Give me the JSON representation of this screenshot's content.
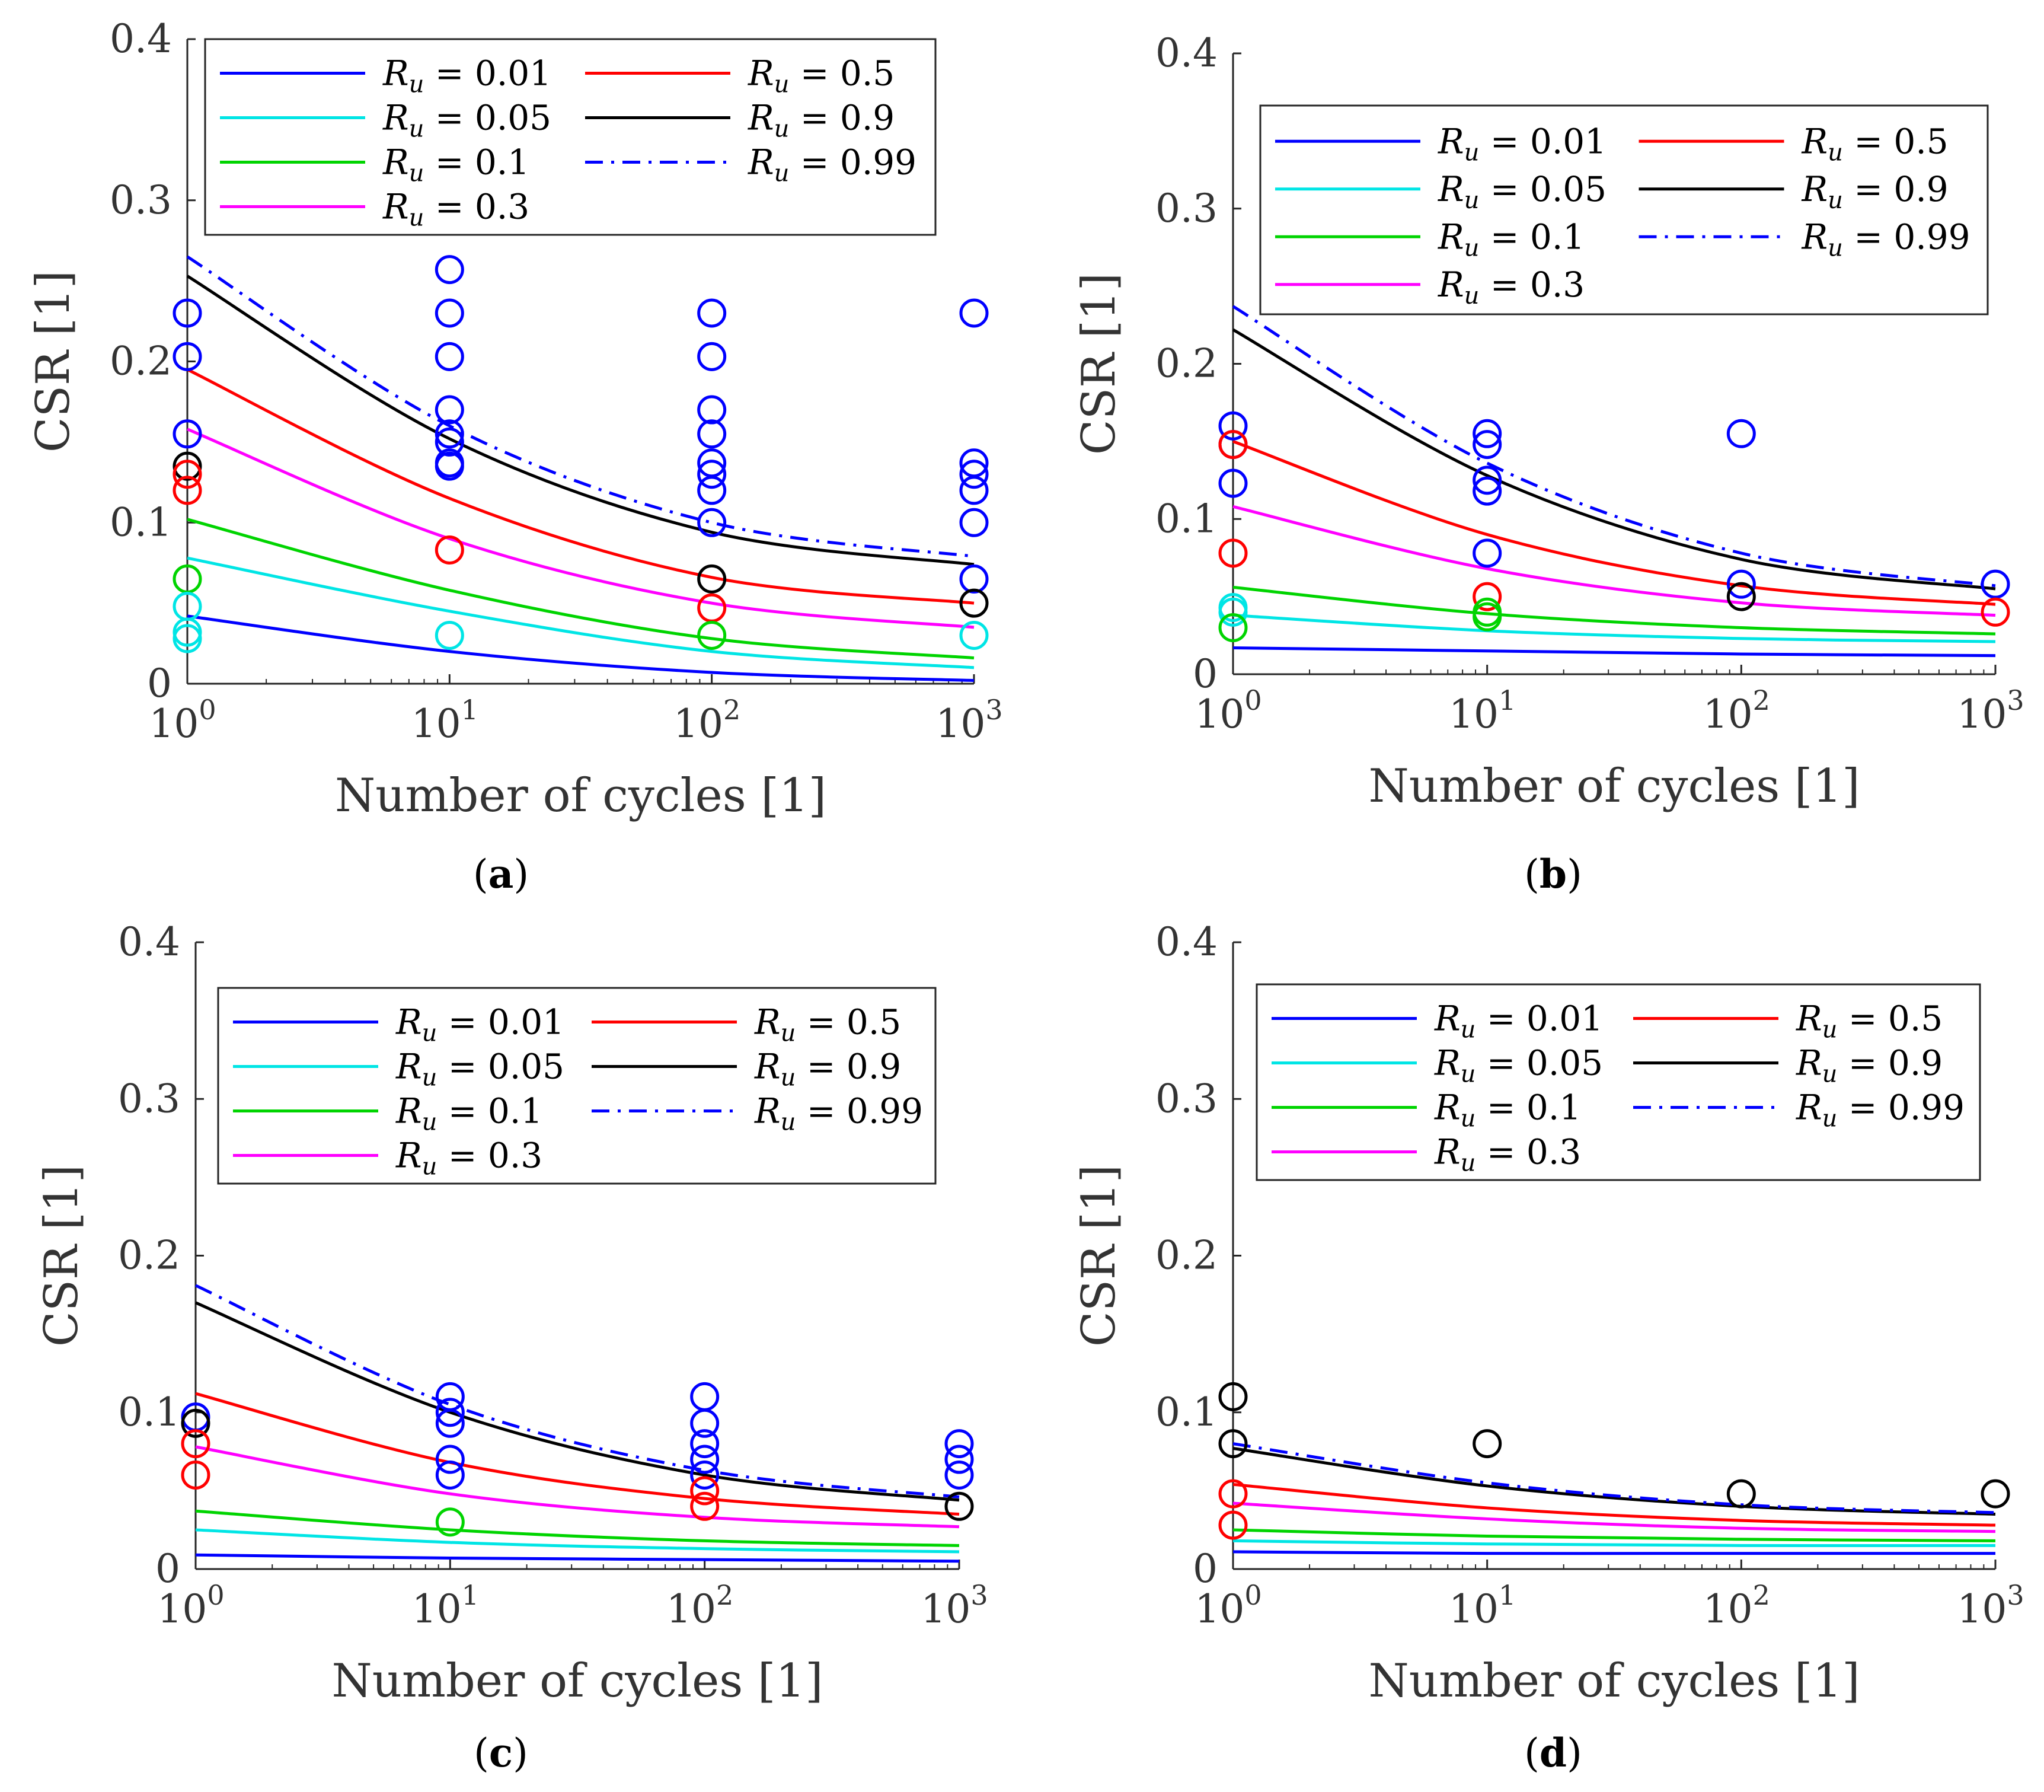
{
  "figure": {
    "panels": [
      {
        "id": "a",
        "caption_letter": "a"
      },
      {
        "id": "b",
        "caption_letter": "b"
      },
      {
        "id": "c",
        "caption_letter": "c"
      },
      {
        "id": "d",
        "caption_letter": "d"
      }
    ]
  },
  "chart_data": [
    {
      "panel": "a",
      "type": "line",
      "xlabel": "Number of cycles [1]",
      "ylabel": "CSR [1]",
      "xscale": "log",
      "xlim": [
        1,
        1000
      ],
      "ylim": [
        0,
        0.4
      ],
      "yticks": [
        "0",
        "0.1",
        "0.2",
        "0.3",
        "0.4"
      ],
      "xticks": [
        {
          "base": "10",
          "exp": "0"
        },
        {
          "base": "10",
          "exp": "1"
        },
        {
          "base": "10",
          "exp": "2"
        },
        {
          "base": "10",
          "exp": "3"
        }
      ],
      "legend_position": "top",
      "series": [
        {
          "name": "0.01",
          "color": "#0000ff",
          "style": "solid",
          "x": [
            1,
            10,
            100,
            1000
          ],
          "values": [
            0.042,
            0.02,
            0.007,
            0.002
          ]
        },
        {
          "name": "0.05",
          "color": "#00e5e5",
          "style": "solid",
          "x": [
            1,
            10,
            100,
            1000
          ],
          "values": [
            0.078,
            0.045,
            0.02,
            0.01
          ]
        },
        {
          "name": "0.1",
          "color": "#00d400",
          "style": "solid",
          "x": [
            1,
            10,
            100,
            1000
          ],
          "values": [
            0.102,
            0.058,
            0.028,
            0.016
          ]
        },
        {
          "name": "0.3",
          "color": "#ff00ff",
          "style": "solid",
          "x": [
            1,
            10,
            100,
            1000
          ],
          "values": [
            0.158,
            0.09,
            0.05,
            0.035
          ]
        },
        {
          "name": "0.5",
          "color": "#ff0000",
          "style": "solid",
          "x": [
            1,
            10,
            100,
            1000
          ],
          "values": [
            0.195,
            0.115,
            0.066,
            0.05
          ]
        },
        {
          "name": "0.9",
          "color": "#000000",
          "style": "solid",
          "x": [
            1,
            10,
            100,
            1000
          ],
          "values": [
            0.253,
            0.152,
            0.094,
            0.074
          ]
        },
        {
          "name": "0.99",
          "color": "#0000ff",
          "style": "dashdot",
          "x": [
            1,
            10,
            100,
            1000
          ],
          "values": [
            0.265,
            0.16,
            0.1,
            0.079
          ]
        }
      ],
      "markers": [
        {
          "color": "#0000ff",
          "points": [
            [
              1,
              0.23
            ],
            [
              1,
              0.203
            ],
            [
              1,
              0.155
            ],
            [
              10,
              0.257
            ],
            [
              10,
              0.23
            ],
            [
              10,
              0.203
            ],
            [
              10,
              0.17
            ],
            [
              10,
              0.155
            ],
            [
              10,
              0.15
            ],
            [
              10,
              0.137
            ],
            [
              10,
              0.135
            ],
            [
              100,
              0.23
            ],
            [
              100,
              0.203
            ],
            [
              100,
              0.17
            ],
            [
              100,
              0.155
            ],
            [
              100,
              0.137
            ],
            [
              100,
              0.13
            ],
            [
              100,
              0.12
            ],
            [
              100,
              0.1
            ],
            [
              1000,
              0.23
            ],
            [
              1000,
              0.137
            ],
            [
              1000,
              0.13
            ],
            [
              1000,
              0.12
            ],
            [
              1000,
              0.1
            ],
            [
              1000,
              0.065
            ]
          ]
        },
        {
          "color": "#000000",
          "points": [
            [
              1,
              0.135
            ],
            [
              100,
              0.065
            ],
            [
              1000,
              0.05
            ]
          ]
        },
        {
          "color": "#ff0000",
          "points": [
            [
              1,
              0.13
            ],
            [
              1,
              0.12
            ],
            [
              10,
              0.083
            ],
            [
              100,
              0.047
            ]
          ]
        },
        {
          "color": "#00d400",
          "points": [
            [
              1,
              0.065
            ],
            [
              100,
              0.03
            ]
          ]
        },
        {
          "color": "#00e5e5",
          "points": [
            [
              1,
              0.048
            ],
            [
              1,
              0.032
            ],
            [
              1,
              0.028
            ],
            [
              10,
              0.03
            ],
            [
              1000,
              0.03
            ]
          ]
        }
      ]
    },
    {
      "panel": "b",
      "type": "line",
      "xlabel": "Number of cycles [1]",
      "ylabel": "CSR [1]",
      "xscale": "log",
      "xlim": [
        1,
        1000
      ],
      "ylim": [
        0,
        0.4
      ],
      "yticks": [
        "0",
        "0.1",
        "0.2",
        "0.3",
        "0.4"
      ],
      "xticks": [
        {
          "base": "10",
          "exp": "0"
        },
        {
          "base": "10",
          "exp": "1"
        },
        {
          "base": "10",
          "exp": "2"
        },
        {
          "base": "10",
          "exp": "3"
        }
      ],
      "legend_position": "top",
      "series": [
        {
          "name": "0.01",
          "color": "#0000ff",
          "style": "solid",
          "x": [
            1,
            10,
            100,
            1000
          ],
          "values": [
            0.017,
            0.015,
            0.013,
            0.012
          ]
        },
        {
          "name": "0.05",
          "color": "#00e5e5",
          "style": "solid",
          "x": [
            1,
            10,
            100,
            1000
          ],
          "values": [
            0.038,
            0.028,
            0.023,
            0.021
          ]
        },
        {
          "name": "0.1",
          "color": "#00d400",
          "style": "solid",
          "x": [
            1,
            10,
            100,
            1000
          ],
          "values": [
            0.056,
            0.039,
            0.03,
            0.026
          ]
        },
        {
          "name": "0.3",
          "color": "#ff00ff",
          "style": "solid",
          "x": [
            1,
            10,
            100,
            1000
          ],
          "values": [
            0.108,
            0.068,
            0.046,
            0.038
          ]
        },
        {
          "name": "0.5",
          "color": "#ff0000",
          "style": "solid",
          "x": [
            1,
            10,
            100,
            1000
          ],
          "values": [
            0.15,
            0.09,
            0.057,
            0.045
          ]
        },
        {
          "name": "0.9",
          "color": "#000000",
          "style": "solid",
          "x": [
            1,
            10,
            100,
            1000
          ],
          "values": [
            0.222,
            0.128,
            0.074,
            0.055
          ]
        },
        {
          "name": "0.99",
          "color": "#0000ff",
          "style": "dashdot",
          "x": [
            1,
            10,
            100,
            1000
          ],
          "values": [
            0.237,
            0.136,
            0.078,
            0.057
          ]
        }
      ],
      "markers": [
        {
          "color": "#0000ff",
          "points": [
            [
              1,
              0.16
            ],
            [
              1,
              0.148
            ],
            [
              1,
              0.123
            ],
            [
              10,
              0.155
            ],
            [
              10,
              0.148
            ],
            [
              10,
              0.125
            ],
            [
              10,
              0.118
            ],
            [
              10,
              0.078
            ],
            [
              100,
              0.155
            ],
            [
              100,
              0.058
            ],
            [
              1000,
              0.058
            ]
          ]
        },
        {
          "color": "#ff0000",
          "points": [
            [
              1,
              0.148
            ],
            [
              1,
              0.078
            ],
            [
              10,
              0.05
            ],
            [
              1000,
              0.04
            ]
          ]
        },
        {
          "color": "#00e5e5",
          "points": [
            [
              1,
              0.043
            ],
            [
              1,
              0.04
            ]
          ]
        },
        {
          "color": "#00d400",
          "points": [
            [
              1,
              0.03
            ],
            [
              10,
              0.04
            ],
            [
              10,
              0.037
            ]
          ]
        },
        {
          "color": "#000000",
          "points": [
            [
              100,
              0.05
            ]
          ]
        }
      ]
    },
    {
      "panel": "c",
      "type": "line",
      "xlabel": "Number of cycles [1]",
      "ylabel": "CSR [1]",
      "xscale": "log",
      "xlim": [
        1,
        1000
      ],
      "ylim": [
        0,
        0.4
      ],
      "yticks": [
        "0",
        "0.1",
        "0.2",
        "0.3",
        "0.4"
      ],
      "xticks": [
        {
          "base": "10",
          "exp": "0"
        },
        {
          "base": "10",
          "exp": "1"
        },
        {
          "base": "10",
          "exp": "2"
        },
        {
          "base": "10",
          "exp": "3"
        }
      ],
      "legend_position": "top",
      "series": [
        {
          "name": "0.01",
          "color": "#0000ff",
          "style": "solid",
          "x": [
            1,
            10,
            100,
            1000
          ],
          "values": [
            0.009,
            0.007,
            0.006,
            0.005
          ]
        },
        {
          "name": "0.05",
          "color": "#00e5e5",
          "style": "solid",
          "x": [
            1,
            10,
            100,
            1000
          ],
          "values": [
            0.025,
            0.017,
            0.013,
            0.011
          ]
        },
        {
          "name": "0.1",
          "color": "#00d400",
          "style": "solid",
          "x": [
            1,
            10,
            100,
            1000
          ],
          "values": [
            0.037,
            0.025,
            0.018,
            0.015
          ]
        },
        {
          "name": "0.3",
          "color": "#ff00ff",
          "style": "solid",
          "x": [
            1,
            10,
            100,
            1000
          ],
          "values": [
            0.078,
            0.048,
            0.033,
            0.027
          ]
        },
        {
          "name": "0.5",
          "color": "#ff0000",
          "style": "solid",
          "x": [
            1,
            10,
            100,
            1000
          ],
          "values": [
            0.112,
            0.068,
            0.045,
            0.035
          ]
        },
        {
          "name": "0.9",
          "color": "#000000",
          "style": "solid",
          "x": [
            1,
            10,
            100,
            1000
          ],
          "values": [
            0.17,
            0.1,
            0.06,
            0.044
          ]
        },
        {
          "name": "0.99",
          "color": "#0000ff",
          "style": "dashdot",
          "x": [
            1,
            10,
            100,
            1000
          ],
          "values": [
            0.181,
            0.105,
            0.063,
            0.046
          ]
        }
      ],
      "markers": [
        {
          "color": "#0000ff",
          "points": [
            [
              1,
              0.097
            ],
            [
              10,
              0.11
            ],
            [
              10,
              0.1
            ],
            [
              10,
              0.093
            ],
            [
              10,
              0.07
            ],
            [
              10,
              0.06
            ],
            [
              100,
              0.11
            ],
            [
              100,
              0.093
            ],
            [
              100,
              0.08
            ],
            [
              100,
              0.07
            ],
            [
              100,
              0.06
            ],
            [
              1000,
              0.08
            ],
            [
              1000,
              0.07
            ],
            [
              1000,
              0.06
            ]
          ]
        },
        {
          "color": "#000000",
          "points": [
            [
              1,
              0.093
            ],
            [
              1000,
              0.04
            ]
          ]
        },
        {
          "color": "#ff0000",
          "points": [
            [
              1,
              0.08
            ],
            [
              1,
              0.06
            ],
            [
              100,
              0.05
            ],
            [
              100,
              0.04
            ]
          ]
        },
        {
          "color": "#00d400",
          "points": [
            [
              10,
              0.03
            ]
          ]
        }
      ]
    },
    {
      "panel": "d",
      "type": "line",
      "xlabel": "Number of cycles [1]",
      "ylabel": "CSR [1]",
      "xscale": "log",
      "xlim": [
        1,
        1000
      ],
      "ylim": [
        0,
        0.4
      ],
      "yticks": [
        "0",
        "0.1",
        "0.2",
        "0.3",
        "0.4"
      ],
      "xticks": [
        {
          "base": "10",
          "exp": "0"
        },
        {
          "base": "10",
          "exp": "1"
        },
        {
          "base": "10",
          "exp": "2"
        },
        {
          "base": "10",
          "exp": "3"
        }
      ],
      "legend_position": "top",
      "series": [
        {
          "name": "0.01",
          "color": "#0000ff",
          "style": "solid",
          "x": [
            1,
            10,
            100,
            1000
          ],
          "values": [
            0.011,
            0.01,
            0.01,
            0.01
          ]
        },
        {
          "name": "0.05",
          "color": "#00e5e5",
          "style": "solid",
          "x": [
            1,
            10,
            100,
            1000
          ],
          "values": [
            0.018,
            0.016,
            0.015,
            0.015
          ]
        },
        {
          "name": "0.1",
          "color": "#00d400",
          "style": "solid",
          "x": [
            1,
            10,
            100,
            1000
          ],
          "values": [
            0.025,
            0.021,
            0.019,
            0.018
          ]
        },
        {
          "name": "0.3",
          "color": "#ff00ff",
          "style": "solid",
          "x": [
            1,
            10,
            100,
            1000
          ],
          "values": [
            0.042,
            0.032,
            0.026,
            0.024
          ]
        },
        {
          "name": "0.5",
          "color": "#ff0000",
          "style": "solid",
          "x": [
            1,
            10,
            100,
            1000
          ],
          "values": [
            0.054,
            0.039,
            0.031,
            0.028
          ]
        },
        {
          "name": "0.9",
          "color": "#000000",
          "style": "solid",
          "x": [
            1,
            10,
            100,
            1000
          ],
          "values": [
            0.077,
            0.053,
            0.04,
            0.035
          ]
        },
        {
          "name": "0.99",
          "color": "#0000ff",
          "style": "dashdot",
          "x": [
            1,
            10,
            100,
            1000
          ],
          "values": [
            0.08,
            0.055,
            0.041,
            0.036
          ]
        }
      ],
      "markers": [
        {
          "color": "#000000",
          "points": [
            [
              1,
              0.11
            ],
            [
              1,
              0.08
            ],
            [
              10,
              0.08
            ],
            [
              100,
              0.048
            ],
            [
              1000,
              0.048
            ]
          ]
        },
        {
          "color": "#ff0000",
          "points": [
            [
              1,
              0.048
            ],
            [
              1,
              0.028
            ]
          ]
        }
      ]
    }
  ]
}
